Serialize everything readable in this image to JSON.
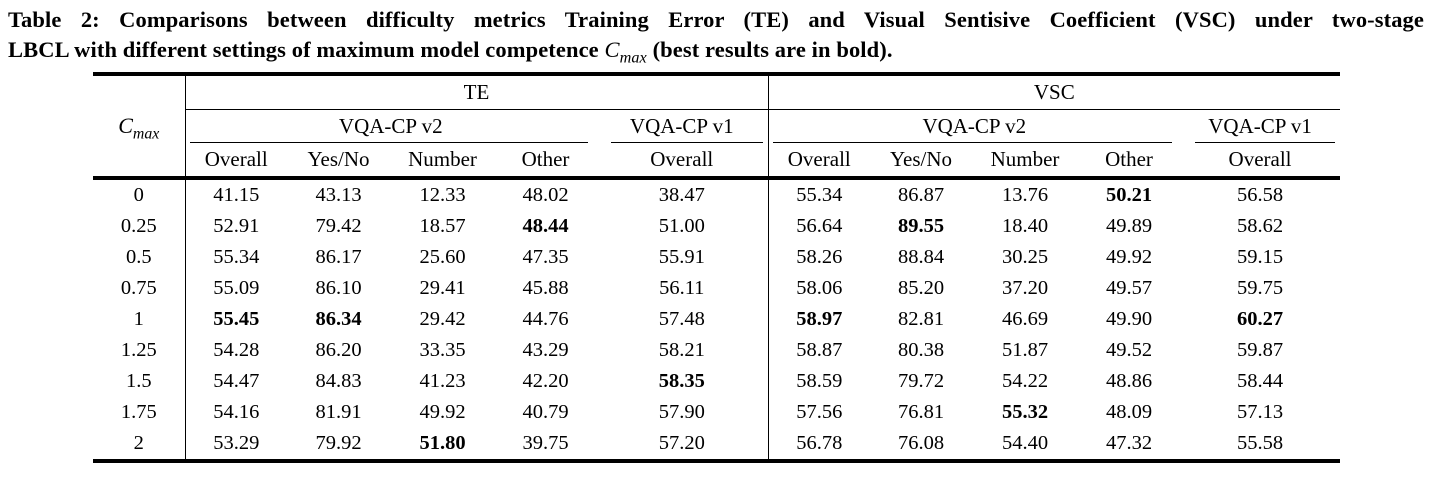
{
  "colors": {
    "text": "#000000",
    "background": "#ffffff",
    "rule": "#000000"
  },
  "caption": {
    "line1": "Table 2: Comparisons between difficulty metrics Training Error (TE) and Visual Sentisive Coefficient (VSC) under two-stage",
    "line2_before": "LBCL with different settings of maximum model competence ",
    "cmax_base": "C",
    "cmax_sub": "max",
    "line2_after": " (best results are in bold)."
  },
  "table": {
    "row_header": {
      "base": "C",
      "sub": "max"
    },
    "groups": [
      {
        "label": "TE",
        "v2_label": "VQA-CP v2",
        "v1_label": "VQA-CP v1"
      },
      {
        "label": "VSC",
        "v2_label": "VQA-CP v2",
        "v1_label": "VQA-CP v1"
      }
    ],
    "subcolumns": [
      "Overall",
      "Yes/No",
      "Number",
      "Other"
    ],
    "v1_subcolumn": "Overall",
    "rows": [
      {
        "cmax": "0",
        "te": [
          "41.15",
          "43.13",
          "12.33",
          "48.02",
          "38.47"
        ],
        "vsc": [
          "55.34",
          "86.87",
          "13.76",
          "50.21",
          "56.58"
        ]
      },
      {
        "cmax": "0.25",
        "te": [
          "52.91",
          "79.42",
          "18.57",
          "48.44",
          "51.00"
        ],
        "vsc": [
          "56.64",
          "89.55",
          "18.40",
          "49.89",
          "58.62"
        ]
      },
      {
        "cmax": "0.5",
        "te": [
          "55.34",
          "86.17",
          "25.60",
          "47.35",
          "55.91"
        ],
        "vsc": [
          "58.26",
          "88.84",
          "30.25",
          "49.92",
          "59.15"
        ]
      },
      {
        "cmax": "0.75",
        "te": [
          "55.09",
          "86.10",
          "29.41",
          "45.88",
          "56.11"
        ],
        "vsc": [
          "58.06",
          "85.20",
          "37.20",
          "49.57",
          "59.75"
        ]
      },
      {
        "cmax": "1",
        "te": [
          "55.45",
          "86.34",
          "29.42",
          "44.76",
          "57.48"
        ],
        "vsc": [
          "58.97",
          "82.81",
          "46.69",
          "49.90",
          "60.27"
        ]
      },
      {
        "cmax": "1.25",
        "te": [
          "54.28",
          "86.20",
          "33.35",
          "43.29",
          "58.21"
        ],
        "vsc": [
          "58.87",
          "80.38",
          "51.87",
          "49.52",
          "59.87"
        ]
      },
      {
        "cmax": "1.5",
        "te": [
          "54.47",
          "84.83",
          "41.23",
          "42.20",
          "58.35"
        ],
        "vsc": [
          "58.59",
          "79.72",
          "54.22",
          "48.86",
          "58.44"
        ]
      },
      {
        "cmax": "1.75",
        "te": [
          "54.16",
          "81.91",
          "49.92",
          "40.79",
          "57.90"
        ],
        "vsc": [
          "57.56",
          "76.81",
          "55.32",
          "48.09",
          "57.13"
        ]
      },
      {
        "cmax": "2",
        "te": [
          "53.29",
          "79.92",
          "51.80",
          "39.75",
          "57.20"
        ],
        "vsc": [
          "56.78",
          "76.08",
          "54.40",
          "47.32",
          "55.58"
        ]
      }
    ],
    "bold_cells": {
      "te": [
        [
          4,
          0
        ],
        [
          4,
          1
        ],
        [
          8,
          2
        ],
        [
          1,
          3
        ],
        [
          6,
          4
        ]
      ],
      "vsc": [
        [
          4,
          0
        ],
        [
          1,
          1
        ],
        [
          7,
          2
        ],
        [
          0,
          3
        ],
        [
          4,
          4
        ]
      ]
    }
  }
}
